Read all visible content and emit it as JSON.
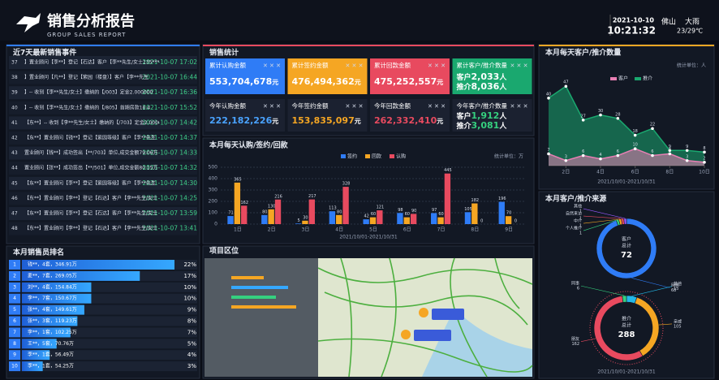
{
  "header": {
    "title": "销售分析报告",
    "subtitle": "GROUP SALES REPORT",
    "date": "2021-10-10",
    "time": "10:21:32",
    "city": "佛山",
    "weather": "大雨",
    "temp": "23/29℃"
  },
  "events": {
    "title": "近7天最新销售事件",
    "rows": [
      {
        "no": "37",
        "text": "】置业顾问【李**】登记【石达】客户【李**先生/女士135****",
        "time": "2021-10-07 17:02"
      },
      {
        "no": "38",
        "text": "】置业顾问【凡**】登记【紫园（楼盘）】客户【李**先生",
        "time": "2021-10-07 16:44"
      },
      {
        "no": "39",
        "text": "】-- 收到【李**先生/女士】缴纳的【/003】定金2.000000",
        "time": "2021-10-07 16:36"
      },
      {
        "no": "40",
        "text": "】-- 收到【李**先生/女士】缴纳的【/805】首期房款16.4",
        "time": "2021-10-07 15:52"
      },
      {
        "no": "41",
        "text": "【东**】-- 收到【李**先生/女士】缴纳的【/703】定金2.00000",
        "time": "2021-10-07 14:42"
      },
      {
        "no": "42",
        "text": "【东**】置业顾问【钱**】登记【紫园等级】客户【李**先生",
        "time": "2021-10-07 14:37"
      },
      {
        "no": "43",
        "text": "置业顾问【钱**】成功签出【**/703】单位,成交金额79.06万",
        "time": "2021-10-07 14:33"
      },
      {
        "no": "44",
        "text": "置业顾问【张**】成功签出【**/501】单位,成交金额80.15万",
        "time": "2021-10-07 14:32"
      },
      {
        "no": "45",
        "text": "【东**】置业顾问【李**】登记【紫园等级】客户【李**先生",
        "time": "2021-10-07 14:30"
      },
      {
        "no": "46",
        "text": "【东**】置业顾问【李**】登记【石达】客户【李**先生/女士",
        "time": "2021-10-07 14:25"
      },
      {
        "no": "47",
        "text": "【东**】置业顾问【李**】登记【石达】客户【李**先生/女士",
        "time": "2021-10-07 13:59"
      },
      {
        "no": "48",
        "text": "【东**】置业顾问【李**】登记【石达】客户【李**先生/女士",
        "time": "2021-10-07 13:41"
      }
    ]
  },
  "ranking": {
    "title": "本月销售员排名",
    "rows": [
      {
        "rank": "1",
        "name": "钱**，4套，346.91万",
        "value": 22,
        "label": "22%"
      },
      {
        "rank": "2",
        "name": "麦**，7套，269.05万",
        "value": 17,
        "label": "17%"
      },
      {
        "rank": "3",
        "name": "刘**，4套，154.84万",
        "value": 10,
        "label": "10%"
      },
      {
        "rank": "4",
        "name": "李**，7套，150.67万",
        "value": 10,
        "label": "10%"
      },
      {
        "rank": "5",
        "name": "张**，4套，149.61万",
        "value": 9,
        "label": "9%"
      },
      {
        "rank": "6",
        "name": "张**，3套，119.23万",
        "value": 8,
        "label": "8%"
      },
      {
        "rank": "7",
        "name": "李**，1套，102.25万",
        "value": 7,
        "label": "7%"
      },
      {
        "rank": "8",
        "name": "王**，5套，70.76万",
        "value": 5,
        "label": "5%"
      },
      {
        "rank": "9",
        "name": "李**，1套，56.49万",
        "value": 4,
        "label": "4%"
      },
      {
        "rank": "10",
        "name": "李**，1套，54.25万",
        "value": 3,
        "label": "3%"
      }
    ]
  },
  "stats": {
    "title": "销售统计",
    "cards": [
      {
        "label": "累计认购金额",
        "value": "553,704,678",
        "unit": "元",
        "color": "#2f7cf6"
      },
      {
        "label": "累计签约金额",
        "value": "476,494,362",
        "unit": "元",
        "color": "#f5a623"
      },
      {
        "label": "累计回款金额",
        "value": "475,252,557",
        "unit": "元",
        "color": "#e84a5f"
      },
      {
        "label": "累计客户/推介数量",
        "color": "#1aa86f",
        "lines": [
          {
            "prefix": "客户",
            "value": "2,033",
            "unit": "人"
          },
          {
            "prefix": "推介",
            "value": "8,036",
            "unit": "人"
          }
        ]
      },
      {
        "label": "今年认购金额",
        "value": "222,182,226",
        "unit": "元",
        "color": "#4aa3ff"
      },
      {
        "label": "今年签约金额",
        "value": "153,835,097",
        "unit": "元",
        "color": "#f5a623"
      },
      {
        "label": "今年回款金额",
        "value": "262,332,410",
        "unit": "元",
        "color": "#e84a5f"
      },
      {
        "label": "今年客户/推介数量",
        "color": "#35d07f",
        "lines": [
          {
            "prefix": "客户",
            "value": "1,912",
            "unit": "人"
          },
          {
            "prefix": "推介",
            "value": "3,081",
            "unit": "人"
          }
        ]
      }
    ]
  },
  "map": {
    "title": "项目区位"
  },
  "chart_data": [
    {
      "type": "bar",
      "title": "本月每天认购/签约/回款",
      "unit_note": "统计单位：万",
      "period": "2021/10/01-2021/10/31",
      "categories": [
        "1日",
        "2日",
        "3日",
        "4日",
        "5日",
        "6日",
        "7日",
        "8日",
        "9日"
      ],
      "series": [
        {
          "name": "签约",
          "color": "#2f7cf6",
          "values": [
            71,
            80,
            5,
            113,
            42,
            98,
            97,
            105,
            196
          ]
        },
        {
          "name": "回款",
          "color": "#f5a623",
          "values": [
            365,
            130,
            30,
            80,
            60,
            60,
            60,
            182,
            70
          ]
        },
        {
          "name": "认购",
          "color": "#e84a5f",
          "values": [
            162,
            216,
            217,
            328,
            121,
            90,
            445,
            0,
            0
          ]
        }
      ],
      "ylim": [
        0,
        500
      ],
      "yticks": [
        0,
        100,
        200,
        300,
        400,
        500
      ],
      "grid": true
    },
    {
      "type": "line",
      "title": "本月每天客户/推介数量",
      "unit_note": "统计单位：人",
      "period": "2021/10/01-2021/10/31",
      "x": [
        1,
        2,
        3,
        4,
        5,
        6,
        7,
        8,
        9,
        10
      ],
      "xlim": [
        1,
        10
      ],
      "xticks": [
        {
          "value": 2,
          "label": "2日"
        },
        {
          "value": 4,
          "label": "4日"
        },
        {
          "value": 6,
          "label": "6日"
        },
        {
          "value": 8,
          "label": "8日"
        },
        {
          "value": 10,
          "label": "10日"
        }
      ],
      "ylim": [
        0,
        50
      ],
      "series": [
        {
          "name": "客户",
          "color": "#e87fb4",
          "values": [
            7,
            3,
            6,
            4,
            6,
            10,
            6,
            7,
            3,
            2
          ]
        },
        {
          "name": "推介",
          "color": "#1aa86f",
          "values": [
            40,
            47,
            27,
            30,
            28,
            18,
            22,
            9,
            9,
            8
          ]
        }
      ]
    },
    {
      "type": "pie",
      "title": "本月客户/推介来源",
      "center_label": "客户",
      "total_label": "总计",
      "total": 72,
      "categories": [
        "网络",
        "个人推介",
        "中介",
        "自然来访",
        "其他"
      ],
      "values": [
        68,
        1,
        1,
        1,
        1
      ],
      "colors": [
        "#2f7cf6",
        "#35d07f",
        "#f5a623",
        "#e84a5f",
        "#9b59ff"
      ]
    },
    {
      "type": "pie",
      "center_label": "推介",
      "total_label": "总计",
      "total": 288,
      "period": "2021/10/01-2021/10/31",
      "categories": [
        "其他",
        "亲戚",
        "朋友",
        "同事"
      ],
      "values": [
        15,
        105,
        162,
        6
      ],
      "colors": [
        "#22b8e8",
        "#f5a623",
        "#e84a5f",
        "#35d07f"
      ]
    }
  ]
}
